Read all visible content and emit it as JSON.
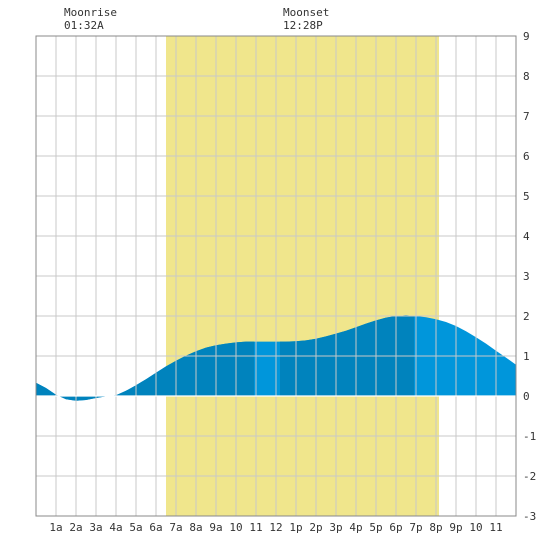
{
  "header": {
    "moonrise": {
      "label": "Moonrise",
      "time": "01:32A"
    },
    "moonset": {
      "label": "Moonset",
      "time": "12:28P"
    }
  },
  "chart_data": {
    "type": "area",
    "title": "",
    "xlabel": "",
    "ylabel": "",
    "x_tick_labels": [
      "1a",
      "2a",
      "3a",
      "4a",
      "5a",
      "6a",
      "7a",
      "8a",
      "9a",
      "10",
      "11",
      "12",
      "1p",
      "2p",
      "3p",
      "4p",
      "5p",
      "6p",
      "7p",
      "8p",
      "9p",
      "10",
      "11"
    ],
    "y_tick_labels": [
      "-3",
      "-2",
      "-1",
      "0",
      "1",
      "2",
      "3",
      "4",
      "5",
      "6",
      "7",
      "8",
      "9"
    ],
    "xlim": [
      0,
      24
    ],
    "ylim": [
      -3,
      9
    ],
    "grid": true,
    "daylight_span_hours": [
      6.5,
      20.15
    ],
    "series": [
      {
        "x": [
          0,
          0.5,
          1,
          1.5,
          2,
          2.5,
          3,
          3.5,
          4,
          4.5,
          5,
          5.5,
          6,
          6.5,
          7,
          7.5,
          8,
          8.5,
          9,
          9.5,
          10,
          10.5,
          11,
          11.5,
          12,
          12.5,
          13,
          13.5,
          14,
          14.5,
          15,
          15.5,
          16,
          16.5,
          17,
          17.5,
          18,
          18.5,
          19,
          19.5,
          20,
          20.5,
          21,
          21.5,
          22,
          22.5,
          23,
          23.5,
          24
        ],
        "values": [
          0.33,
          0.2,
          0.03,
          -0.08,
          -0.12,
          -0.1,
          -0.05,
          -0.01,
          0.02,
          0.13,
          0.27,
          0.42,
          0.58,
          0.74,
          0.88,
          1.01,
          1.12,
          1.21,
          1.27,
          1.31,
          1.34,
          1.36,
          1.36,
          1.36,
          1.36,
          1.36,
          1.37,
          1.39,
          1.43,
          1.49,
          1.56,
          1.63,
          1.72,
          1.81,
          1.89,
          1.96,
          2.0,
          2.02,
          2.0,
          1.97,
          1.92,
          1.85,
          1.75,
          1.62,
          1.47,
          1.31,
          1.13,
          0.96,
          0.78
        ]
      }
    ],
    "colors": {
      "daylight": "#f0e68c",
      "fill_dark": "#0083bd",
      "fill_light": "#0096db",
      "grid": "#c8c8c8",
      "frame": "#888888",
      "baseline": "#ffffff"
    }
  }
}
